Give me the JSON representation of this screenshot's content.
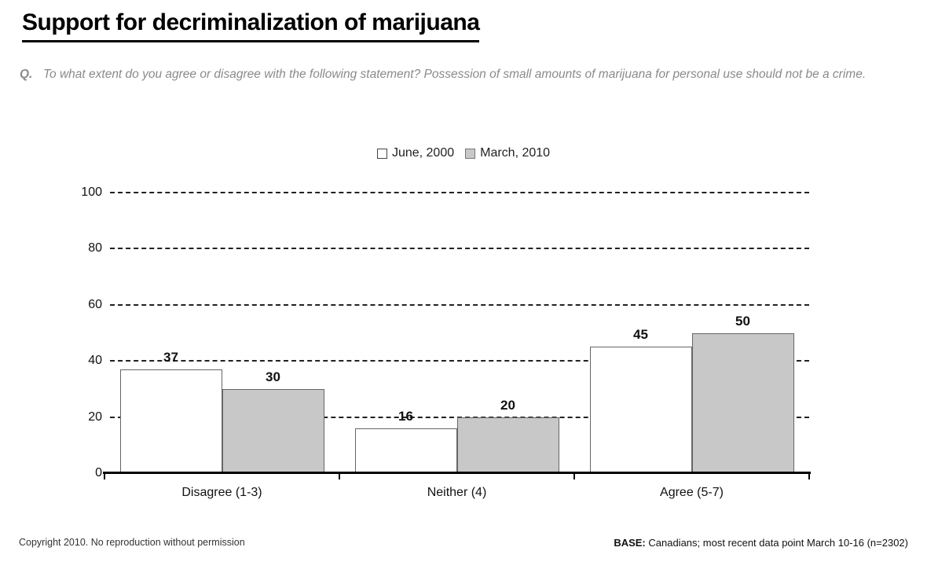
{
  "header": {
    "title": "Support for decriminalization of marijuana",
    "question_prefix": "Q.",
    "question_text": "To what extent do you agree or disagree with the following statement? Possession of small amounts of marijuana for personal use should not be a crime."
  },
  "chart_data": {
    "type": "bar",
    "title": "Support for decriminalization of marijuana",
    "categories": [
      "Disagree (1-3)",
      "Neither (4)",
      "Agree (5-7)"
    ],
    "series": [
      {
        "name": "June, 2000",
        "values": [
          37,
          16,
          45
        ],
        "fill": "#ffffff",
        "border": "#666666"
      },
      {
        "name": "March, 2010",
        "values": [
          30,
          20,
          50
        ],
        "fill": "#c8c8c8",
        "border": "#666666"
      }
    ],
    "xlabel": "",
    "ylabel": "",
    "ylim": [
      0,
      100
    ],
    "yticks": [
      0,
      20,
      40,
      60,
      80,
      100
    ],
    "grid": "horizontal-dashed",
    "legend_position": "top-center",
    "value_labels": true
  },
  "footer": {
    "copyright": "Copyright 2010. No reproduction without permission",
    "base_label": "BASE:",
    "base_text": " Canadians; most recent data point March 10-16 (n=2302)"
  }
}
